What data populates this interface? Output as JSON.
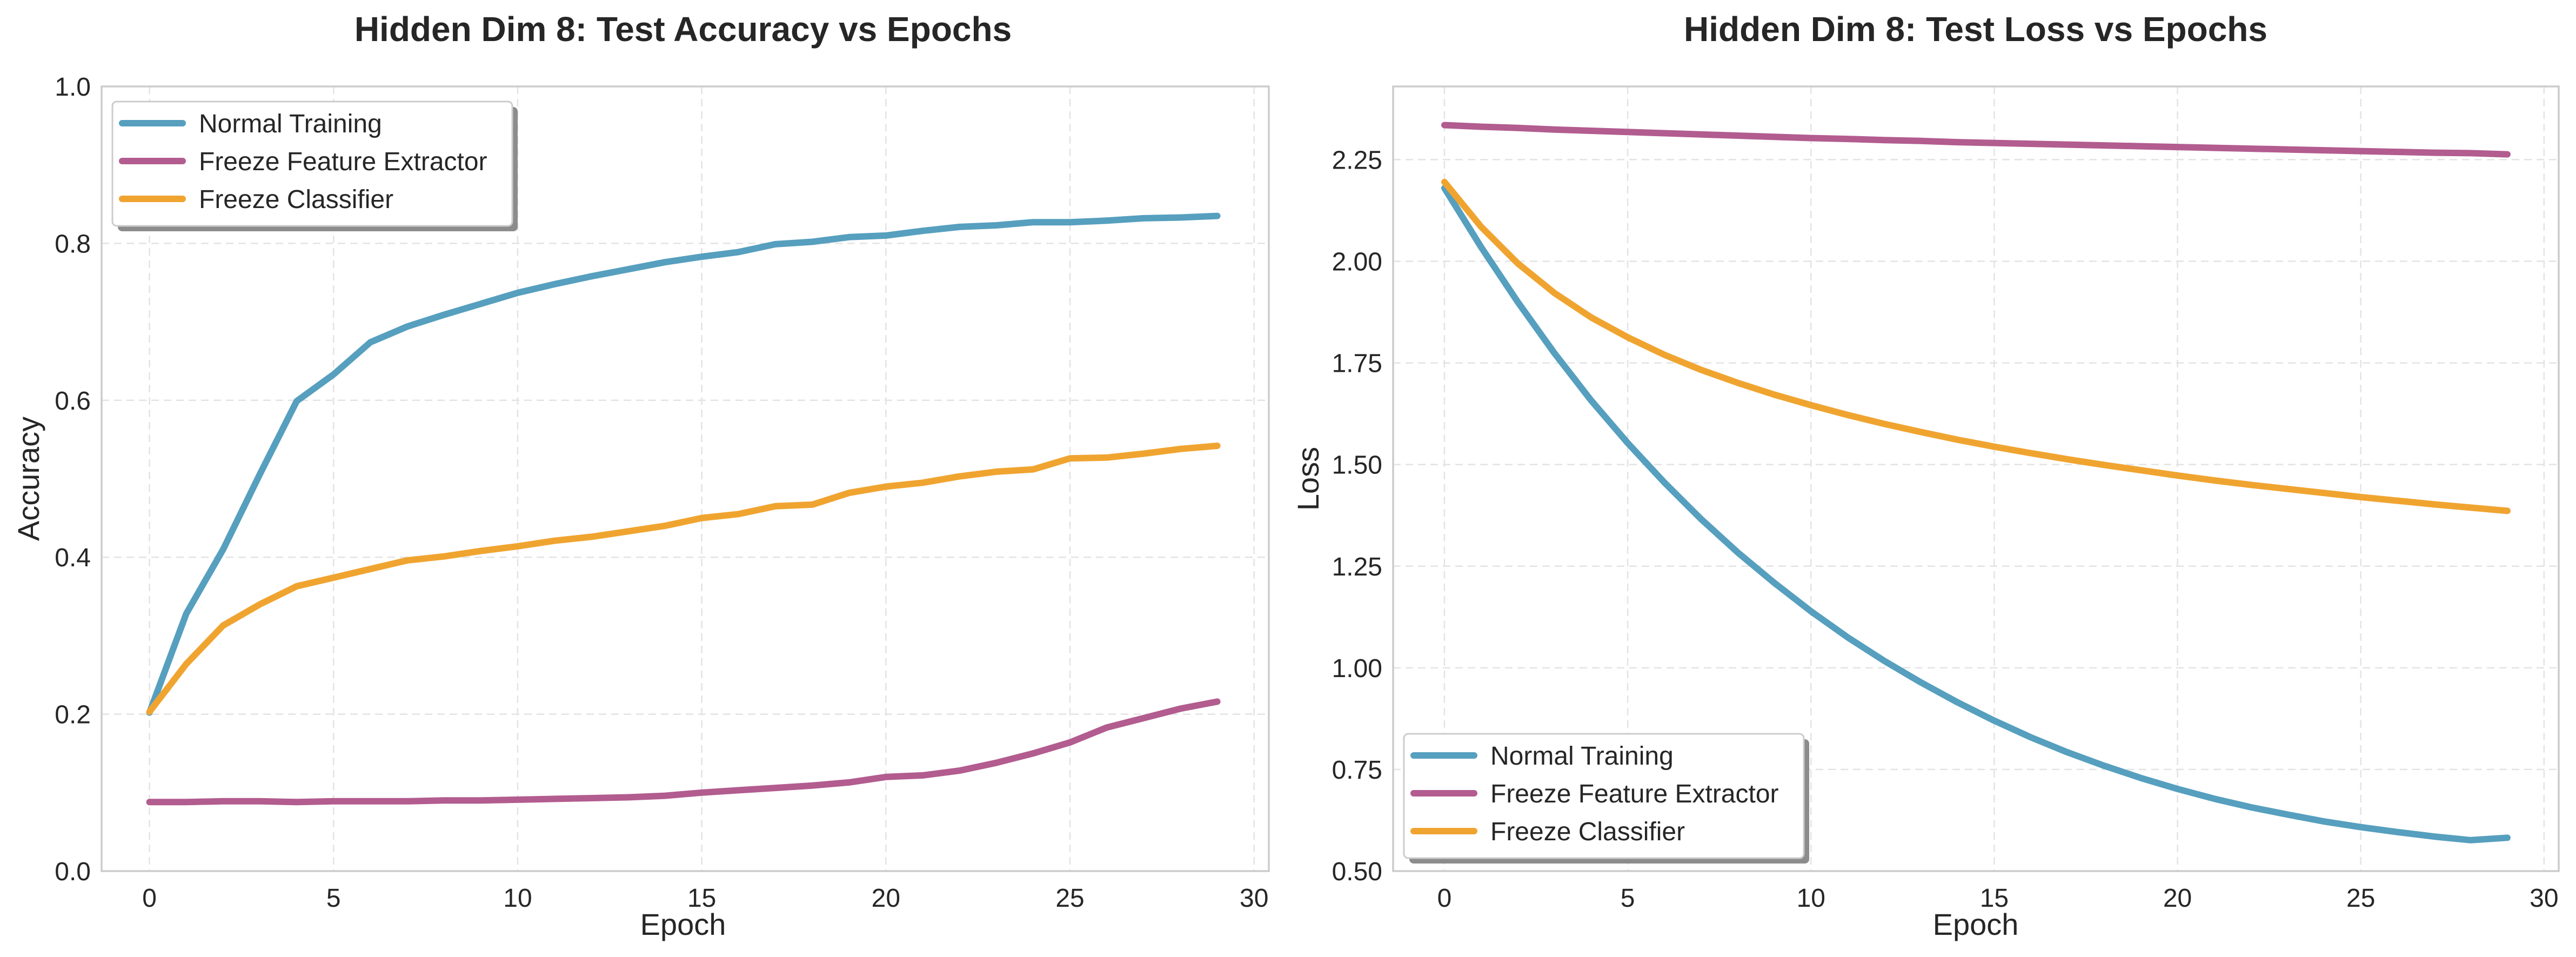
{
  "colors": {
    "normal": "#569fbe",
    "freeze_feature": "#b25c8f",
    "freeze_classifier": "#f0a430"
  },
  "chart_data": [
    {
      "type": "line",
      "title": "Hidden Dim 8: Test Accuracy vs Epochs",
      "xlabel": "Epoch",
      "ylabel": "Accuracy",
      "xlim": [
        -1.3,
        30.4
      ],
      "ylim": [
        0,
        1.0
      ],
      "xticks": [
        0,
        5,
        10,
        15,
        20,
        25,
        30
      ],
      "xtick_labels": [
        "0",
        "5",
        "10",
        "15",
        "20",
        "25",
        "30"
      ],
      "yticks": [
        0,
        0.2,
        0.4,
        0.6,
        0.8,
        1.0
      ],
      "ytick_labels": [
        "0.0",
        "0.2",
        "0.4",
        "0.6",
        "0.8",
        "1.0"
      ],
      "grid": true,
      "legend_position": "top-left",
      "x": [
        0,
        1,
        2,
        3,
        4,
        5,
        6,
        7,
        8,
        9,
        10,
        11,
        12,
        13,
        14,
        15,
        16,
        17,
        18,
        19,
        20,
        21,
        22,
        23,
        24,
        25,
        26,
        27,
        28,
        29
      ],
      "series": [
        {
          "name": "Normal Training",
          "color_key": "normal",
          "values": [
            0.202,
            0.328,
            0.41,
            0.506,
            0.599,
            0.633,
            0.674,
            0.694,
            0.709,
            0.723,
            0.737,
            0.748,
            0.758,
            0.767,
            0.776,
            0.783,
            0.789,
            0.799,
            0.802,
            0.808,
            0.81,
            0.816,
            0.821,
            0.823,
            0.827,
            0.827,
            0.829,
            0.832,
            0.833,
            0.835
          ]
        },
        {
          "name": "Freeze Feature Extractor",
          "color_key": "freeze_feature",
          "values": [
            0.088,
            0.088,
            0.089,
            0.089,
            0.088,
            0.089,
            0.089,
            0.089,
            0.09,
            0.09,
            0.091,
            0.092,
            0.093,
            0.094,
            0.096,
            0.1,
            0.103,
            0.106,
            0.109,
            0.113,
            0.12,
            0.122,
            0.128,
            0.138,
            0.15,
            0.164,
            0.183,
            0.195,
            0.207,
            0.216
          ]
        },
        {
          "name": "Freeze Classifier",
          "color_key": "freeze_classifier",
          "values": [
            0.203,
            0.264,
            0.313,
            0.34,
            0.363,
            0.374,
            0.385,
            0.396,
            0.401,
            0.408,
            0.414,
            0.421,
            0.426,
            0.433,
            0.44,
            0.45,
            0.455,
            0.465,
            0.467,
            0.482,
            0.49,
            0.495,
            0.503,
            0.509,
            0.512,
            0.526,
            0.527,
            0.532,
            0.538,
            0.542
          ]
        }
      ]
    },
    {
      "type": "line",
      "title": "Hidden Dim 8: Test Loss vs Epochs",
      "xlabel": "Epoch",
      "ylabel": "Loss",
      "xlim": [
        -1.4,
        30.4
      ],
      "ylim": [
        0.5,
        2.43
      ],
      "xticks": [
        0,
        5,
        10,
        15,
        20,
        25,
        30
      ],
      "xtick_labels": [
        "0",
        "5",
        "10",
        "15",
        "20",
        "25",
        "30"
      ],
      "yticks": [
        0.5,
        0.75,
        1.0,
        1.25,
        1.5,
        1.75,
        2.0,
        2.25
      ],
      "ytick_labels": [
        "0.50",
        "0.75",
        "1.00",
        "1.25",
        "1.50",
        "1.75",
        "2.00",
        "2.25"
      ],
      "grid": true,
      "legend_position": "bottom-left",
      "x": [
        0,
        1,
        2,
        3,
        4,
        5,
        6,
        7,
        8,
        9,
        10,
        11,
        12,
        13,
        14,
        15,
        16,
        17,
        18,
        19,
        20,
        21,
        22,
        23,
        24,
        25,
        26,
        27,
        28,
        29
      ],
      "series": [
        {
          "name": "Normal Training",
          "color_key": "normal",
          "values": [
            2.18,
            2.035,
            1.9,
            1.774,
            1.658,
            1.553,
            1.456,
            1.366,
            1.284,
            1.209,
            1.139,
            1.075,
            1.017,
            0.964,
            0.915,
            0.87,
            0.829,
            0.792,
            0.759,
            0.729,
            0.702,
            0.678,
            0.657,
            0.639,
            0.622,
            0.608,
            0.596,
            0.585,
            0.576,
            0.582
          ]
        },
        {
          "name": "Freeze Feature Extractor",
          "color_key": "freeze_feature",
          "values": [
            2.335,
            2.331,
            2.328,
            2.324,
            2.321,
            2.318,
            2.315,
            2.312,
            2.309,
            2.306,
            2.303,
            2.301,
            2.298,
            2.296,
            2.293,
            2.291,
            2.289,
            2.287,
            2.285,
            2.283,
            2.281,
            2.279,
            2.277,
            2.275,
            2.273,
            2.271,
            2.269,
            2.267,
            2.266,
            2.263
          ]
        },
        {
          "name": "Freeze Classifier",
          "color_key": "freeze_classifier",
          "values": [
            2.195,
            2.085,
            1.995,
            1.922,
            1.862,
            1.813,
            1.77,
            1.733,
            1.701,
            1.672,
            1.646,
            1.622,
            1.6,
            1.58,
            1.561,
            1.544,
            1.528,
            1.513,
            1.499,
            1.486,
            1.473,
            1.461,
            1.45,
            1.44,
            1.43,
            1.42,
            1.411,
            1.402,
            1.394,
            1.386
          ]
        }
      ]
    }
  ]
}
